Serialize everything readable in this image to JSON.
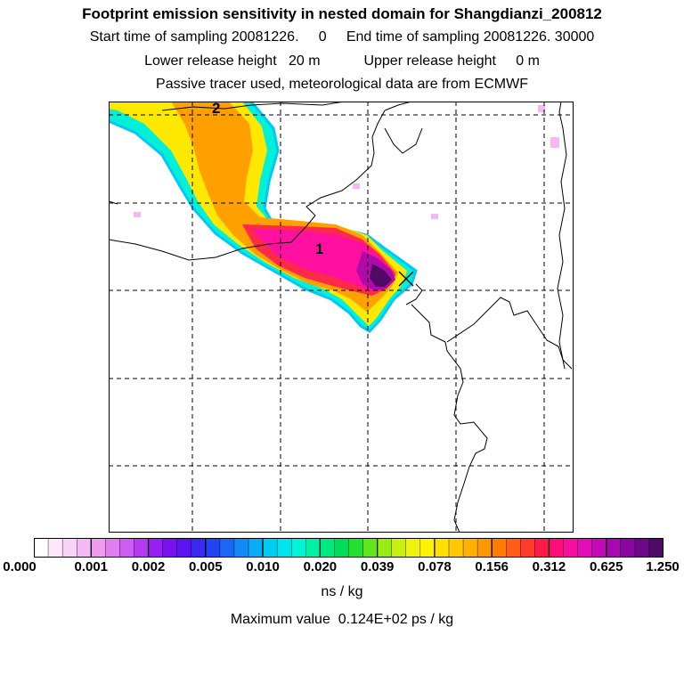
{
  "header": {
    "title": "Footprint emission sensitivity in nested domain for Shangdianzi_200812",
    "sampling_line": "Start time of sampling 20081226.     0     End time of sampling 20081226. 30000",
    "release_line": "Lower release height   20 m           Upper release height     0 m",
    "tracer_line": "Passive tracer used, meteorological data are from ECMWF"
  },
  "map": {
    "contour_labels": [
      "1",
      "2"
    ],
    "release_marker": "x-marker",
    "grid": true
  },
  "colorbar": {
    "tick_labels": [
      "0.000",
      "0.001",
      "0.002",
      "0.005",
      "0.010",
      "0.020",
      "0.039",
      "0.078",
      "0.156",
      "0.312",
      "0.625",
      "1.250"
    ],
    "units": "ns / kg",
    "colors": [
      "#ffffff",
      "#fde8fb",
      "#f9d2f7",
      "#f4b8f4",
      "#ee9cf0",
      "#e07ef0",
      "#cc5cf2",
      "#b33af2",
      "#9a1ef4",
      "#7a12f0",
      "#5a14f0",
      "#3a2af0",
      "#2244f4",
      "#1a66f6",
      "#128af6",
      "#0aacf6",
      "#00ccf4",
      "#00e4ee",
      "#00f4d4",
      "#00f0a8",
      "#00e880",
      "#00dc5a",
      "#22e030",
      "#60e61c",
      "#98ec14",
      "#c8ee12",
      "#eef20e",
      "#fff200",
      "#ffe000",
      "#ffc800",
      "#ffb000",
      "#ff9800",
      "#ff7c00",
      "#ff5e14",
      "#ff3c2c",
      "#ff1a48",
      "#ff0e78",
      "#f50ea0",
      "#e00eb4",
      "#c40ab8",
      "#a808b0",
      "#8a06a0",
      "#6c0888",
      "#4e0a66"
    ]
  },
  "max_value_text": "Maximum value  0.124E+02 ps / kg"
}
